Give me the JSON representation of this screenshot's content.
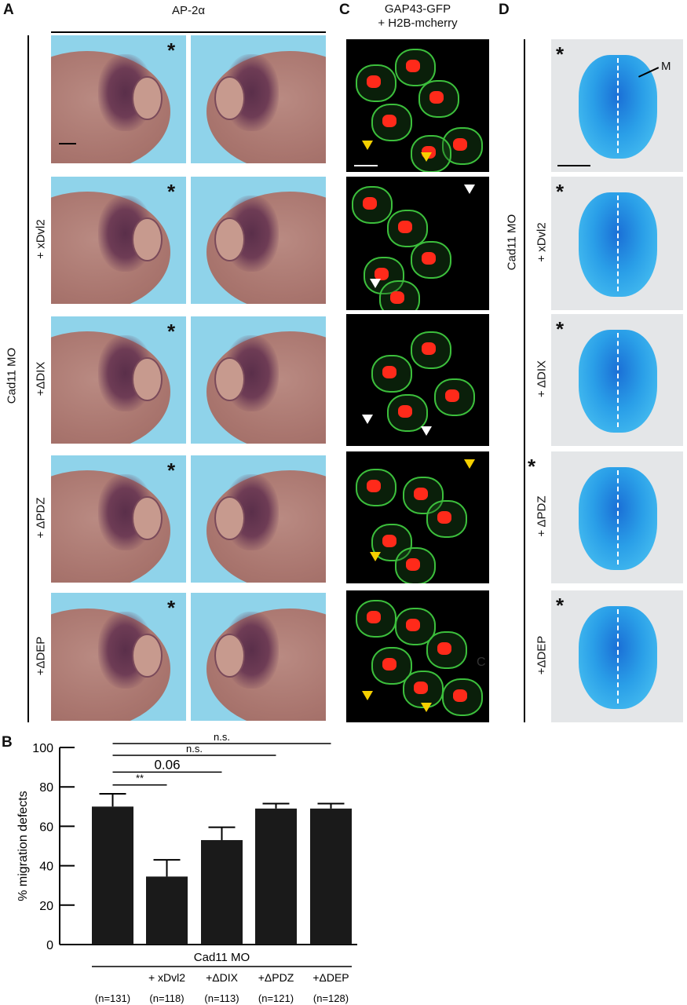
{
  "panels": {
    "A": "A",
    "B": "B",
    "C": "C",
    "D": "D"
  },
  "panelA": {
    "header": "AP-2α",
    "group_label": "Cad11 MO",
    "rows": [
      "",
      "+ xDvl2",
      "+ΔDIX",
      "+ ΔPDZ",
      "+ΔDEP"
    ],
    "asterisk": "*"
  },
  "panelC": {
    "header_line1": "GAP43-GFP",
    "header_line2": "+ H2B-mcherry",
    "stray_letter": "C"
  },
  "panelD": {
    "group_label": "Cad11 MO",
    "rows": [
      "",
      "+ xDvl2",
      "+ ΔDIX",
      "+ ΔPDZ",
      "+ΔDEP"
    ],
    "asterisk": "*",
    "marker": "M"
  },
  "colors": {
    "embryo_bg": "#8fd3ea",
    "stain": "#5a2f4a",
    "gfp": "#3cbf3c",
    "mcherry": "#ff2a1a",
    "alcian": "#2a9fe8",
    "arrow_yellow": "#f5d000",
    "arrow_white": "#ffffff",
    "bar": "#1a1a1a"
  },
  "chart_data": {
    "type": "bar",
    "ylabel": "% migration defects",
    "ylim": [
      0,
      100
    ],
    "yticks": [
      "0",
      "20",
      "40",
      "60",
      "80",
      "100"
    ],
    "group_label": "Cad11 MO",
    "categories": [
      "",
      "+ xDvl2",
      "+ΔDIX",
      "+ΔPDZ",
      "+ΔDEP"
    ],
    "n_labels": [
      "(n=131)",
      "(n=118)",
      "(n=113)",
      "(n=121)",
      "(n=128)"
    ],
    "values": [
      70,
      34.5,
      53,
      69,
      69
    ],
    "error_upper": [
      76.5,
      43,
      59.5,
      71.5,
      71.5
    ],
    "significance": [
      {
        "from": 0,
        "to": 1,
        "label": "**"
      },
      {
        "from": 0,
        "to": 2,
        "label": "0.06"
      },
      {
        "from": 0,
        "to": 3,
        "label": "n.s."
      },
      {
        "from": 0,
        "to": 4,
        "label": "n.s."
      }
    ]
  }
}
